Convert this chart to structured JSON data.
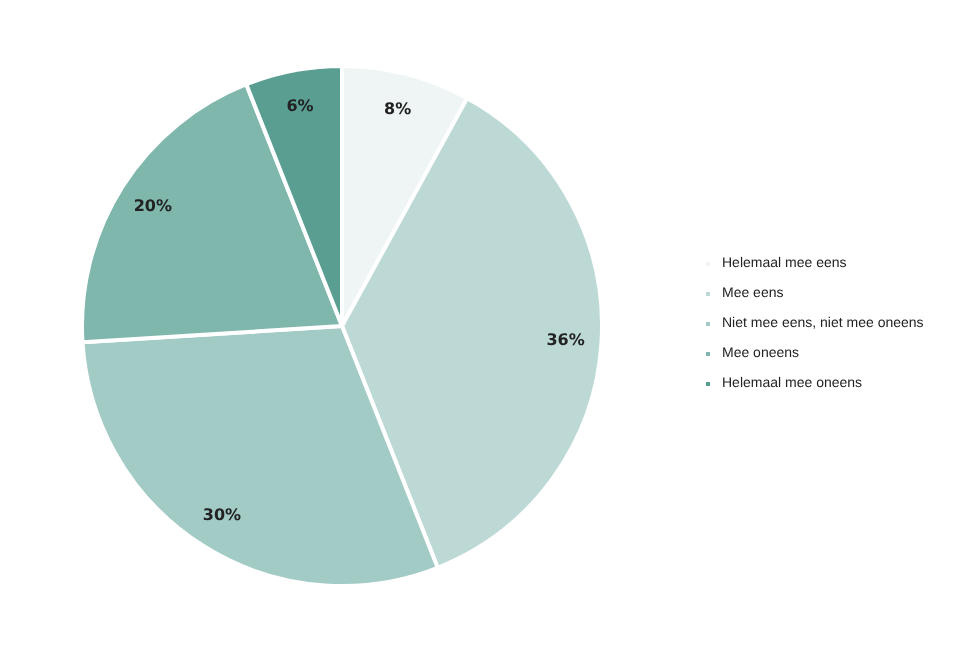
{
  "chart_data": {
    "type": "pie",
    "categories": [
      "Helemaal mee eens",
      "Mee eens",
      "Niet mee eens, niet mee oneens",
      "Mee oneens",
      "Helemaal mee oneens"
    ],
    "values": [
      8,
      36,
      30,
      20,
      6
    ],
    "colors": [
      "#eef5f4",
      "#bdd9d5",
      "#a2cbc5",
      "#7fb7ad",
      "#5a9e92"
    ],
    "value_labels": [
      "8%",
      "36%",
      "30%",
      "20%",
      "6%"
    ],
    "legend": "right"
  }
}
